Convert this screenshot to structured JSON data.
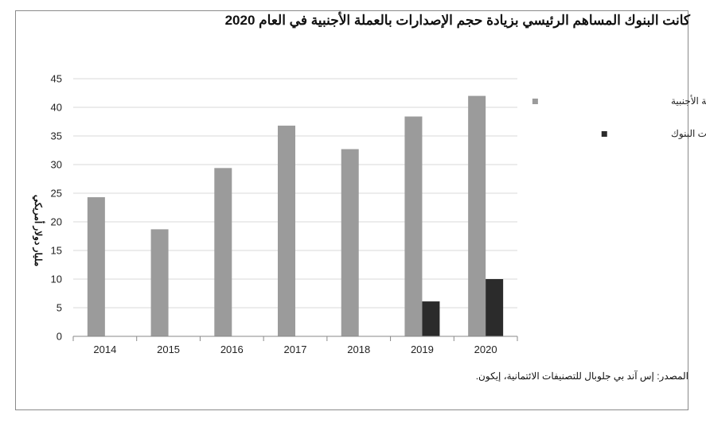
{
  "chart_data": {
    "type": "bar",
    "title": "كانت البنوك المساهم الرئيسي بزيادة حجم الإصدارات بالعملة الأجنبية في العام 2020",
    "ylabel": "مليار دولار أمريكي",
    "xlabel": "",
    "categories": [
      "2014",
      "2015",
      "2016",
      "2017",
      "2018",
      "2019",
      "2020"
    ],
    "ylim": [
      0,
      45
    ],
    "yticks": [
      0,
      5,
      10,
      15,
      20,
      25,
      30,
      35,
      40,
      45
    ],
    "grid": true,
    "legend_position": "right",
    "series": [
      {
        "name": "إجمالي الإصدارات بالعملة الأجنبية",
        "color": "#9b9b9b",
        "values": [
          24.3,
          18.7,
          29.4,
          36.8,
          32.7,
          38.4,
          42.0
        ]
      },
      {
        "name": "إصدارات البنوك",
        "color": "#2b2b2b",
        "values": [
          0,
          0,
          0,
          0,
          0,
          6.1,
          10.0
        ]
      }
    ],
    "source": "المصدر: إس آند بي جلوبال للتصنيفات الائتمانية، إيكون."
  }
}
